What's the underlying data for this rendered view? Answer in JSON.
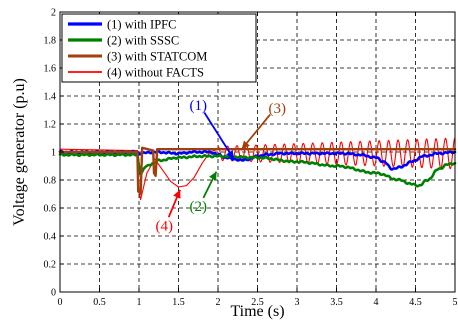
{
  "chart_data": {
    "type": "line",
    "xlabel": "Time (s)",
    "ylabel": "Voltage generator (p.u)",
    "xlim": [
      0,
      5
    ],
    "ylim": [
      0,
      2
    ],
    "xticks": [
      0,
      0.5,
      1,
      1.5,
      2,
      2.5,
      3,
      3.5,
      4,
      4.5,
      5
    ],
    "xtick_labels": [
      "0",
      "0.5",
      "1",
      "1.5",
      "2",
      "2.5",
      "3",
      "3.5",
      "4",
      "4.5",
      "5"
    ],
    "yticks": [
      0,
      0.2,
      0.4,
      0.6,
      0.8,
      1,
      1.2,
      1.4,
      1.6,
      1.8,
      2
    ],
    "ytick_labels": [
      "0",
      "0.2",
      "0.4",
      "0.6",
      "0.8",
      "1",
      "1.2",
      "1.4",
      "1.6",
      "1.8",
      "2"
    ],
    "grid": true,
    "legend_position": "top-left",
    "series": [
      {
        "name": "(1) with IPFC",
        "color": "#0000ff",
        "style": "smooth",
        "points": [
          [
            0,
            1.0
          ],
          [
            0.98,
            1.0
          ],
          [
            1.0,
            0.99
          ],
          [
            1.2,
            1.0
          ],
          [
            1.5,
            0.99
          ],
          [
            1.7,
            1.0
          ],
          [
            1.9,
            1.0
          ],
          [
            2.0,
            0.98
          ],
          [
            2.1,
            0.96
          ],
          [
            2.2,
            0.95
          ],
          [
            2.3,
            0.94
          ],
          [
            2.4,
            0.95
          ],
          [
            2.5,
            0.97
          ],
          [
            2.6,
            0.98
          ],
          [
            2.8,
            0.99
          ],
          [
            3.0,
            0.99
          ],
          [
            3.3,
            0.99
          ],
          [
            3.6,
            0.99
          ],
          [
            3.8,
            0.98
          ],
          [
            4.0,
            0.96
          ],
          [
            4.1,
            0.93
          ],
          [
            4.2,
            0.88
          ],
          [
            4.3,
            0.89
          ],
          [
            4.45,
            0.93
          ],
          [
            4.6,
            0.97
          ],
          [
            4.8,
            0.99
          ],
          [
            5.0,
            1.0
          ]
        ]
      },
      {
        "name": "(2) with SSSC",
        "color": "#008000",
        "style": "smooth",
        "points": [
          [
            0,
            0.98
          ],
          [
            0.98,
            0.98
          ],
          [
            1.0,
            0.9
          ],
          [
            1.02,
            0.85
          ],
          [
            1.1,
            0.9
          ],
          [
            1.18,
            0.92
          ],
          [
            1.25,
            0.94
          ],
          [
            1.5,
            0.96
          ],
          [
            1.8,
            0.97
          ],
          [
            2.0,
            0.97
          ],
          [
            2.5,
            0.96
          ],
          [
            3.0,
            0.93
          ],
          [
            3.5,
            0.9
          ],
          [
            4.0,
            0.85
          ],
          [
            4.3,
            0.8
          ],
          [
            4.45,
            0.77
          ],
          [
            4.55,
            0.76
          ],
          [
            4.65,
            0.8
          ],
          [
            4.8,
            0.88
          ],
          [
            4.9,
            0.91
          ],
          [
            5.0,
            0.92
          ]
        ]
      },
      {
        "name": "(3) with STATCOM",
        "color": "#a0400a",
        "style": "steps",
        "points": [
          [
            0,
            1.0
          ],
          [
            0.98,
            1.0
          ],
          [
            0.99,
            0.72
          ],
          [
            1.02,
            0.7
          ],
          [
            1.04,
            1.03
          ],
          [
            1.18,
            1.01
          ],
          [
            1.19,
            0.85
          ],
          [
            1.21,
            0.83
          ],
          [
            1.23,
            1.02
          ],
          [
            1.35,
            1.02
          ],
          [
            2.0,
            1.02
          ],
          [
            3.0,
            1.02
          ],
          [
            4.0,
            1.02
          ],
          [
            5.0,
            1.02
          ]
        ]
      },
      {
        "name": "(4) without FACTS",
        "color": "#ff0000",
        "style": "oscillation",
        "points": [
          [
            0,
            1.02
          ],
          [
            0.98,
            1.01
          ],
          [
            1.0,
            0.72
          ],
          [
            1.02,
            0.66
          ],
          [
            1.1,
            0.85
          ],
          [
            1.2,
            0.95
          ],
          [
            1.3,
            0.87
          ],
          [
            1.4,
            0.79
          ],
          [
            1.5,
            0.75
          ],
          [
            1.6,
            0.76
          ],
          [
            1.7,
            0.82
          ],
          [
            1.8,
            0.92
          ],
          [
            1.9,
            1.0
          ],
          [
            2.0,
            1.02
          ]
        ],
        "oscillation": {
          "x_start": 2.0,
          "x_end": 5.0,
          "period": 0.12,
          "center": 0.99,
          "amplitude_start": 0.05,
          "amplitude_end": 0.11
        }
      }
    ],
    "annotations": [
      {
        "text": "(1)",
        "color": "#0000ff",
        "x": 1.75,
        "y": 1.3,
        "arrow_to": [
          2.2,
          0.95
        ]
      },
      {
        "text": "(3)",
        "color": "#a0400a",
        "x": 2.75,
        "y": 1.28,
        "arrow_to": [
          2.3,
          1.02
        ]
      },
      {
        "text": "(2)",
        "color": "#008000",
        "x": 1.75,
        "y": 0.58,
        "arrow_to": [
          1.98,
          0.86
        ]
      },
      {
        "text": "(4)",
        "color": "#ff0000",
        "x": 1.32,
        "y": 0.44,
        "arrow_to": [
          1.52,
          0.73
        ]
      }
    ]
  }
}
